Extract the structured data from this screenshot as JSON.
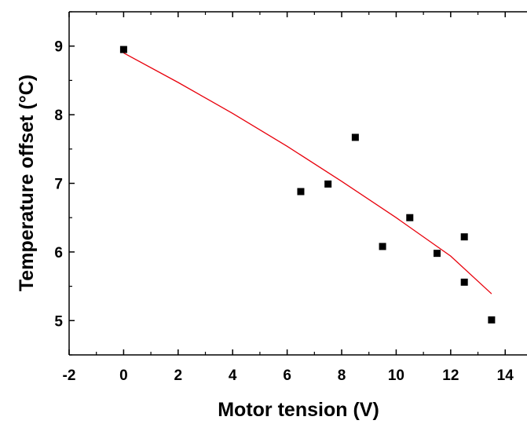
{
  "chart_data": {
    "type": "scatter",
    "title": "",
    "xlabel": "Motor tension (V)",
    "ylabel": "Temperature offset (°C)",
    "xlim": [
      -2,
      14.8
    ],
    "ylim": [
      4.5,
      9.5
    ],
    "x_ticks": [
      -2,
      0,
      2,
      4,
      6,
      8,
      10,
      12,
      14
    ],
    "y_ticks": [
      5,
      6,
      7,
      8,
      9
    ],
    "grid": false,
    "legend": "none",
    "series": [
      {
        "type": "scatter",
        "marker": "square",
        "color": "#000000",
        "points": [
          {
            "x": 0,
            "y": 8.95
          },
          {
            "x": 6.5,
            "y": 6.88
          },
          {
            "x": 7.5,
            "y": 6.99
          },
          {
            "x": 8.5,
            "y": 7.67
          },
          {
            "x": 9.5,
            "y": 6.08
          },
          {
            "x": 10.5,
            "y": 6.5
          },
          {
            "x": 11.5,
            "y": 5.98
          },
          {
            "x": 12.5,
            "y": 6.22
          },
          {
            "x": 12.5,
            "y": 5.56
          },
          {
            "x": 13.5,
            "y": 5.01
          }
        ]
      },
      {
        "type": "line",
        "color": "#e8000b",
        "points": [
          {
            "x": 0,
            "y": 8.9
          },
          {
            "x": 2,
            "y": 8.47
          },
          {
            "x": 4,
            "y": 8.02
          },
          {
            "x": 6,
            "y": 7.54
          },
          {
            "x": 8,
            "y": 7.03
          },
          {
            "x": 10,
            "y": 6.5
          },
          {
            "x": 12,
            "y": 5.94
          },
          {
            "x": 13.5,
            "y": 5.39
          }
        ]
      }
    ]
  }
}
